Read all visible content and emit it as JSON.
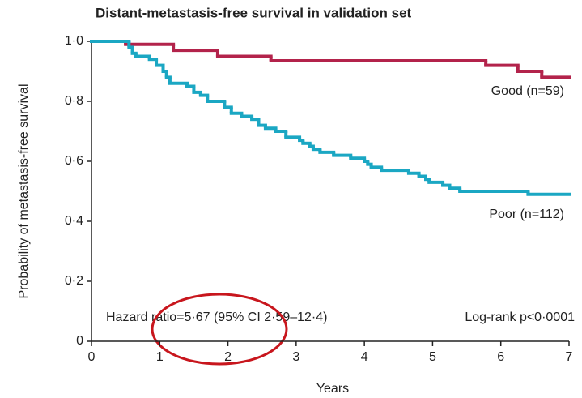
{
  "chart_data": {
    "type": "line",
    "step": "post",
    "title": "Distant-metastasis-free survival in validation set",
    "xlabel": "Years",
    "ylabel": "Probability of metastasis-free survival",
    "xlim": [
      0,
      7
    ],
    "xticks": [
      0,
      1,
      2,
      3,
      4,
      5,
      6,
      7
    ],
    "ylim": [
      0,
      1
    ],
    "yticks": [
      {
        "value": 0,
        "label": "0"
      },
      {
        "value": 0.2,
        "label": "0·2"
      },
      {
        "value": 0.4,
        "label": "0·4"
      },
      {
        "value": 0.6,
        "label": "0·6"
      },
      {
        "value": 0.8,
        "label": "0·8"
      },
      {
        "value": 1,
        "label": "1·0"
      }
    ],
    "grid": false,
    "series": [
      {
        "name": "Good (n=59)",
        "color": "#b3234b",
        "x": [
          0,
          0.5,
          1.2,
          1.85,
          2.63,
          5.78,
          6.25,
          6.6
        ],
        "values": [
          1.0,
          0.99,
          0.97,
          0.95,
          0.935,
          0.92,
          0.9,
          0.88
        ]
      },
      {
        "name": "Poor (n=112)",
        "color": "#1ba7c3",
        "x": [
          0,
          0.55,
          0.6,
          0.65,
          0.85,
          0.95,
          1.05,
          1.1,
          1.15,
          1.4,
          1.5,
          1.6,
          1.7,
          1.95,
          2.05,
          2.2,
          2.35,
          2.45,
          2.55,
          2.7,
          2.85,
          3.05,
          3.1,
          3.2,
          3.25,
          3.35,
          3.55,
          3.8,
          4.0,
          4.05,
          4.1,
          4.25,
          4.65,
          4.8,
          4.9,
          4.95,
          5.15,
          5.25,
          5.4,
          6.4
        ],
        "values": [
          1.0,
          0.98,
          0.96,
          0.95,
          0.94,
          0.92,
          0.9,
          0.88,
          0.86,
          0.85,
          0.83,
          0.82,
          0.8,
          0.78,
          0.76,
          0.75,
          0.74,
          0.72,
          0.71,
          0.7,
          0.68,
          0.67,
          0.66,
          0.65,
          0.64,
          0.63,
          0.62,
          0.61,
          0.6,
          0.59,
          0.58,
          0.57,
          0.56,
          0.55,
          0.54,
          0.53,
          0.52,
          0.51,
          0.5,
          0.49
        ]
      }
    ],
    "annotations": [
      "Hazard ratio=5·67 (95% CI 2·59–12·4)",
      "Log-rank p<0·0001"
    ]
  }
}
